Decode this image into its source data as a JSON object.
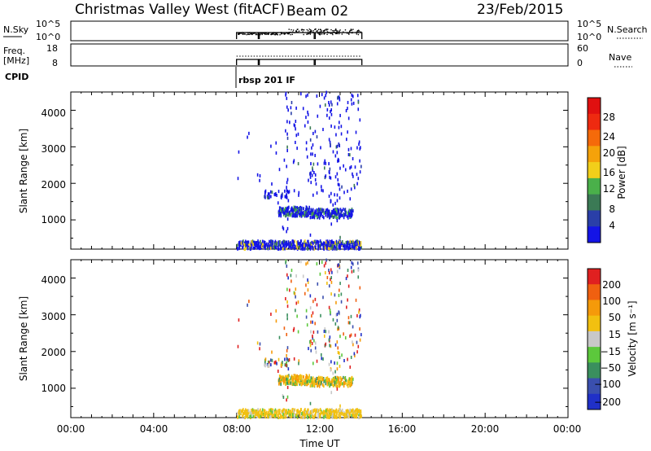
{
  "header": {
    "station": "Christmas Valley West (fitACF)",
    "beam": "Beam 02",
    "date": "23/Feb/2015"
  },
  "nsky_panel": {
    "left_label": "N.Sky",
    "right_label": "N.Search",
    "left_ticks": [
      "10^5",
      "10^0"
    ],
    "right_ticks": [
      "10^5",
      "10^0"
    ],
    "right_legend_style": "dotted"
  },
  "freq_panel": {
    "left_label_1": "Freq.",
    "left_label_2": "[MHz]",
    "right_label": "Nave",
    "left_ticks": [
      "18",
      "8"
    ],
    "right_ticks": [
      "60",
      "0"
    ],
    "right_legend_style": "dotted"
  },
  "cpid_panel": {
    "label": "CPID",
    "value": "rbsp 201 IF"
  },
  "colors": {
    "power": [
      "#1414e6",
      "#2a3fa8",
      "#3b7a55",
      "#4ab04a",
      "#f2cf1a",
      "#f5a20a",
      "#f56a0a",
      "#ee2a10",
      "#e01010"
    ],
    "velocity": [
      "#2030c8",
      "#3a4fae",
      "#3a8f5e",
      "#5cc83c",
      "#c8c8c8",
      "#f2c010",
      "#f59a0a",
      "#f06010",
      "#e02020"
    ]
  },
  "chart_data": [
    {
      "type": "heatmap",
      "name": "power_panel",
      "ylabel": "Slant Range [km]",
      "yticks": [
        "1000",
        "2000",
        "3000",
        "4000"
      ],
      "ylim": [
        200,
        4500
      ],
      "xlim": [
        0,
        24
      ],
      "colorbar": {
        "label": "Power [dB]",
        "ticks": [
          "4",
          "8",
          "12",
          "16",
          "20",
          "24",
          "28"
        ]
      },
      "data_window_hours": [
        8.0,
        14.0
      ]
    },
    {
      "type": "heatmap",
      "name": "velocity_panel",
      "ylabel": "Slant Range [km]",
      "yticks": [
        "1000",
        "2000",
        "3000",
        "4000"
      ],
      "ylim": [
        200,
        4500
      ],
      "xlim": [
        0,
        24
      ],
      "xlabel": "Time UT",
      "xticks": [
        "00:00",
        "04:00",
        "08:00",
        "12:00",
        "16:00",
        "20:00",
        "00:00"
      ],
      "colorbar": {
        "label": "Velocity [m s⁻¹]",
        "ticks": [
          "200",
          "100",
          "50",
          "15",
          "−15",
          "−50",
          "−100",
          "−200"
        ]
      },
      "data_window_hours": [
        8.0,
        14.0
      ]
    }
  ]
}
